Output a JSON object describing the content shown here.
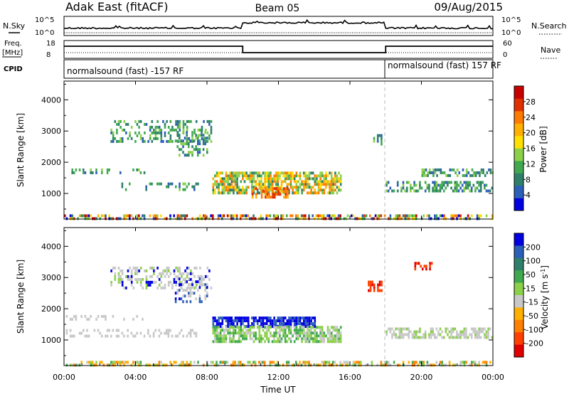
{
  "header": {
    "title": "Adak East (fitACF)",
    "beam": "Beam 05",
    "date": "09/Aug/2015"
  },
  "sky_panel": {
    "left_label": "N.Sky",
    "right_label": "N.Search",
    "left_ticks": [
      "10^5",
      "10^0"
    ],
    "right_ticks": [
      "10^5",
      "10^0"
    ]
  },
  "freq_panel": {
    "left_label_1": "Freq.",
    "left_label_2": "[MHz]",
    "right_label": "Nave",
    "left_ticks": [
      "18",
      "8"
    ],
    "right_ticks": [
      "60",
      "0"
    ]
  },
  "cpid_panel": {
    "label": "CPID",
    "segments": [
      {
        "text": "normalsound (fast) -157 RF",
        "start_h": 0,
        "end_h": 18
      },
      {
        "text": "normalsound (fast) 157 RF",
        "start_h": 18,
        "end_h": 24
      }
    ]
  },
  "chart_data": [
    {
      "type": "heatmap",
      "name": "power",
      "xlabel": "",
      "ylabel": "Slant Range [km]",
      "xlim": [
        0,
        24
      ],
      "ylim": [
        180,
        4600
      ],
      "yticks": [
        1000,
        2000,
        3000,
        4000
      ],
      "colorbar": {
        "label": "Power [dB]",
        "tick_labels": [
          "4",
          "8",
          "12",
          "16",
          "20",
          "24",
          "28"
        ],
        "colors": [
          "#0000e0",
          "#2c5fb8",
          "#2f7f6a",
          "#41a84f",
          "#8cd04a",
          "#ffe000",
          "#ffb000",
          "#ff7a00",
          "#e03000",
          "#c80000"
        ]
      }
    },
    {
      "type": "heatmap",
      "name": "velocity",
      "xlabel": "Time UT",
      "ylabel": "Slant Range [km]",
      "xlim": [
        0,
        24
      ],
      "ylim": [
        180,
        4600
      ],
      "yticks": [
        1000,
        2000,
        3000,
        4000
      ],
      "xticks": [
        "00:00",
        "04:00",
        "08:00",
        "12:00",
        "16:00",
        "20:00",
        "00:00"
      ],
      "colorbar": {
        "label_main": "Velocity [m s",
        "label_sup": "-1",
        "label_end": "]",
        "tick_labels": [
          "200",
          "100",
          "50",
          "15",
          "-15",
          "-50",
          "-100",
          "-200"
        ],
        "colors": [
          "#0000e0",
          "#2c5fb8",
          "#2f7f6a",
          "#41a84f",
          "#8cd04a",
          "#c8c8c8",
          "#ffb000",
          "#ff8000",
          "#ff4000",
          "#e00000"
        ]
      }
    }
  ]
}
